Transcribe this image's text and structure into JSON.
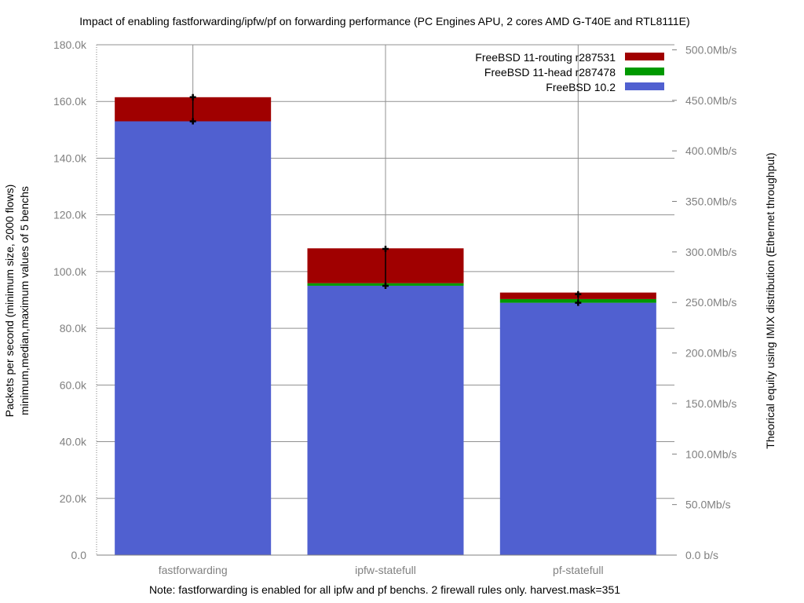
{
  "chart_data": {
    "type": "bar",
    "stacked": true,
    "title": "Impact of enabling fastforwarding/ipfw/pf on forwarding performance (PC Engines APU, 2 cores AMD G-T40E and RTL8111E)",
    "note": "Note: fastforwarding is enabled for all ipfw and pf benchs. 2 firewall rules only. harvest.mask=351",
    "ylabel": [
      "Packets per second (minimum size, 2000 flows)",
      "minimum,median,maximum values of 5 benchs"
    ],
    "ylabel2": "Theorical equity using IMIX distribution (Ethernet throughput)",
    "ylim": [
      0,
      180000
    ],
    "y_ticks": [
      "0.0",
      "20.0k",
      "40.0k",
      "60.0k",
      "80.0k",
      "100.0k",
      "120.0k",
      "140.0k",
      "160.0k",
      "180.0k"
    ],
    "y2_ticks": [
      "0.0 b/s",
      "50.0Mb/s",
      "100.0Mb/s",
      "150.0Mb/s",
      "200.0Mb/s",
      "250.0Mb/s",
      "300.0Mb/s",
      "350.0Mb/s",
      "400.0Mb/s",
      "450.0Mb/s",
      "500.0Mb/s"
    ],
    "y2_max_mbps": 505,
    "categories": [
      "fastforwarding",
      "ipfw-statefull",
      "pf-statefull"
    ],
    "series": [
      {
        "name": "FreeBSD 10.2",
        "color": "#5060d0",
        "values": [
          153000,
          95000,
          89000
        ]
      },
      {
        "name": "FreeBSD 11-head r287478",
        "color": "#009900",
        "values": [
          0,
          900,
          1300
        ]
      },
      {
        "name": "FreeBSD 11-routing r287531",
        "color": "#a00000",
        "values": [
          8500,
          12300,
          2300
        ]
      }
    ],
    "error_bars": [
      {
        "min": 153000,
        "max": 161500,
        "markers": [
          153000,
          161500
        ]
      },
      {
        "min": 95000,
        "max": 108000,
        "markers": [
          95000,
          108000
        ]
      },
      {
        "min": 88500,
        "max": 92500,
        "markers": [
          89000,
          92000
        ]
      }
    ],
    "legend_position": "top-right",
    "grid": true
  }
}
